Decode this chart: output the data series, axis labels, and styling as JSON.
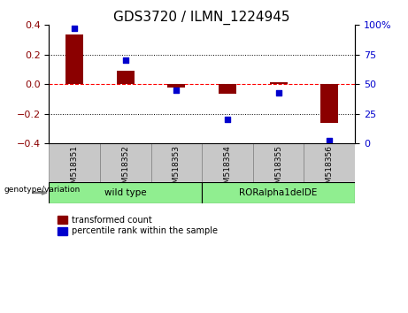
{
  "title": "GDS3720 / ILMN_1224945",
  "categories": [
    "GSM518351",
    "GSM518352",
    "GSM518353",
    "GSM518354",
    "GSM518355",
    "GSM518356"
  ],
  "bar_values": [
    0.335,
    0.09,
    -0.02,
    -0.065,
    0.015,
    -0.26
  ],
  "scatter_values": [
    97,
    70,
    45,
    20,
    43,
    2
  ],
  "bar_color": "#8B0000",
  "scatter_color": "#0000CD",
  "ylim_left": [
    -0.4,
    0.4
  ],
  "ylim_right": [
    0,
    100
  ],
  "yticks_left": [
    -0.4,
    -0.2,
    0.0,
    0.2,
    0.4
  ],
  "yticks_right": [
    0,
    25,
    50,
    75,
    100
  ],
  "yticklabels_right": [
    "0",
    "25",
    "50",
    "75",
    "100%"
  ],
  "group1_label": "wild type",
  "group2_label": "RORalpha1delDE",
  "group1_color": "#90EE90",
  "group2_color": "#90EE90",
  "group1_indices": [
    0,
    1,
    2
  ],
  "group2_indices": [
    3,
    4,
    5
  ],
  "genotype_label": "genotype/variation",
  "legend1_label": "transformed count",
  "legend2_label": "percentile rank within the sample",
  "dotted_line_color": "#000000",
  "red_dashed_color": "#FF0000",
  "title_fontsize": 11,
  "tick_fontsize": 8,
  "bar_width": 0.35,
  "label_bg_color": "#C8C8C8",
  "group_border_color": "#000000"
}
